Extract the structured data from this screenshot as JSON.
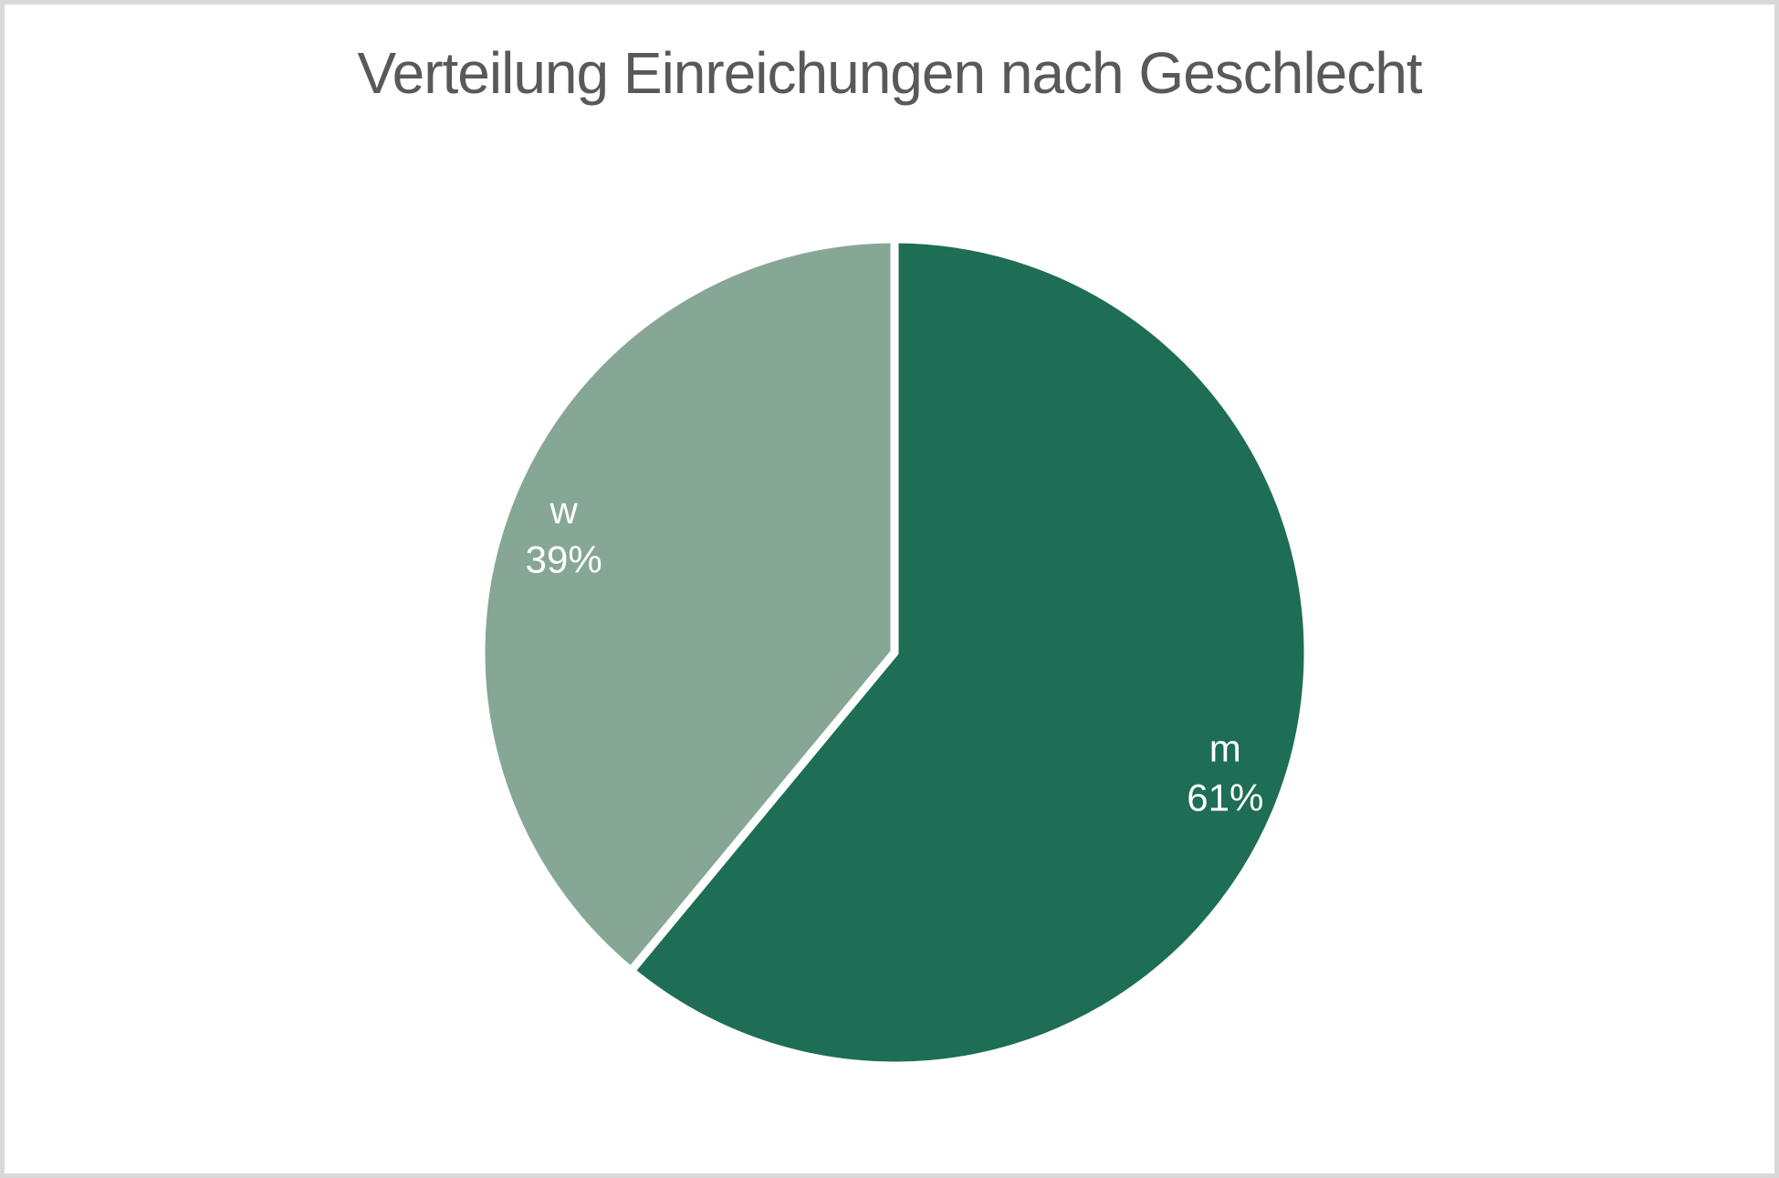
{
  "title": "Verteilung Einreichungen nach Geschlecht",
  "frame": {
    "border_color": "#d9d9d9",
    "background_color": "#ffffff",
    "title_color": "#595959"
  },
  "chart_data": {
    "type": "pie",
    "title": "Verteilung Einreichungen nach Geschlecht",
    "categories": [
      "m",
      "w"
    ],
    "values": [
      61,
      39
    ],
    "series": [
      {
        "name": "m",
        "value": 61,
        "percent_label": "61%",
        "color": "#1d6e54"
      },
      {
        "name": "w",
        "value": 39,
        "percent_label": "39%",
        "color": "#86a795"
      }
    ],
    "start_angle_deg": 0,
    "direction": "clockwise",
    "legend": "none",
    "labels": "inside",
    "label_color": "#ffffff",
    "separator_color": "#ffffff"
  }
}
